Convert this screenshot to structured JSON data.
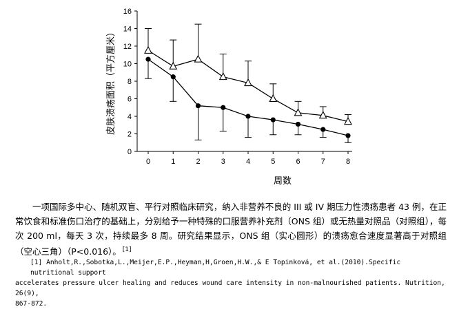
{
  "chart_data": {
    "type": "line",
    "title": "",
    "xlabel": "周数",
    "ylabel": "皮肤溃疡面积（平方厘米）",
    "x": [
      0,
      1,
      2,
      3,
      4,
      5,
      6,
      7,
      8
    ],
    "xticks": [
      "0",
      "1",
      "2",
      "3",
      "4",
      "5",
      "6",
      "7",
      "8"
    ],
    "xlim": [
      0,
      8
    ],
    "yticks": [
      "0",
      "2",
      "4",
      "6",
      "8",
      "10",
      "12",
      "14",
      "16"
    ],
    "ylim": [
      0,
      16
    ],
    "grid": false,
    "series": [
      {
        "marker": "open-triangle",
        "values": [
          11.5,
          9.7,
          10.5,
          8.5,
          7.8,
          6.0,
          4.4,
          4.1,
          3.4
        ],
        "err_upper": [
          2.5,
          3.0,
          4.0,
          2.6,
          2.5,
          1.7,
          1.3,
          1.0,
          0.8
        ]
      },
      {
        "marker": "filled-circle",
        "values": [
          10.5,
          8.5,
          5.2,
          5.0,
          4.0,
          3.6,
          3.1,
          2.5,
          1.8
        ],
        "err_lower": [
          2.2,
          2.8,
          3.9,
          2.7,
          2.4,
          1.7,
          1.2,
          0.9,
          0.8
        ]
      }
    ],
    "colors": {
      "line": "#000000",
      "background": "#ffffff"
    }
  },
  "caption": {
    "main": "一项国际多中心、随机双盲、平行对照临床研究，纳入非营养不良的 III 或 IV 期压力性溃疡患者 43 例，在正常饮食和标准伤口治疗的基础上，分别给予一种特殊的口服营养补充剂（ONS 组）或无热量对照品（对照组），每次 200 ml，每天 3 次，持续最多 8 周。研究结果显示，ONS 组（实心圆形）的溃疡愈合速度显著高于对照组（空心三角）（P<0.016）。",
    "citation": "[1]"
  },
  "reference": {
    "line1": "[1] Anholt,R.,Sobotka,L.,Meijer,E.P.,Heyman,H,Groen,H.W.,& E Topinková, et al.(2010).Specific nutritional support",
    "line2": "accelerates pressure ulcer healing and reduces wound care intensity in non-malnourished patients. Nutrition, 26(9),",
    "line3": "867-872."
  }
}
